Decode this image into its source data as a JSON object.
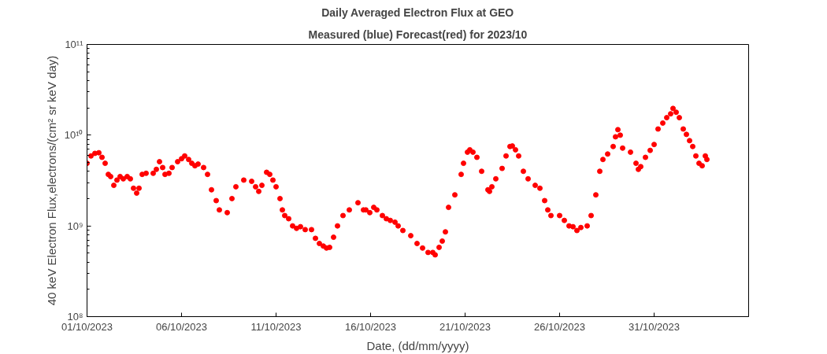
{
  "chart_data": {
    "type": "scatter",
    "title": "Daily Averaged Electron Flux at GEO",
    "subtitle": "Measured (blue) Forecast(red) for 2023/10",
    "xlabel": "Date, (dd/mm/yyyy)",
    "ylabel": "40 keV Electron Flux,electrons/(cm² sr keV day)",
    "log": "y",
    "marker": "circle",
    "grid": false,
    "xlim": [
      "2023-10-01",
      "2023-11-05"
    ],
    "xticks": [
      {
        "value": "2023-10-01",
        "label": "01/10/2023"
      },
      {
        "value": "2023-10-06",
        "label": "06/10/2023"
      },
      {
        "value": "2023-10-11",
        "label": "11/10/2023"
      },
      {
        "value": "2023-10-16",
        "label": "16/10/2023"
      },
      {
        "value": "2023-10-21",
        "label": "21/10/2023"
      },
      {
        "value": "2023-10-26",
        "label": "26/10/2023"
      },
      {
        "value": "2023-10-31",
        "label": "31/10/2023"
      }
    ],
    "ylim": [
      100000000,
      100000000000
    ],
    "yticks": [
      {
        "value": 100000000,
        "label": "10⁸"
      },
      {
        "value": 1000000000,
        "label": "10⁹"
      },
      {
        "value": 10000000000,
        "label": "10¹⁰"
      },
      {
        "value": 100000000000,
        "label": "10¹¹"
      }
    ],
    "x": [
      "2023-10-01T00:00",
      "2023-10-01T05:00",
      "2023-10-01T10:00",
      "2023-10-01T15:00",
      "2023-10-01T19:00",
      "2023-10-01T23:00",
      "2023-10-02T03:00",
      "2023-10-02T06:00",
      "2023-10-02T10:00",
      "2023-10-02T14:00",
      "2023-10-02T18:00",
      "2023-10-02T22:00",
      "2023-10-03T03:00",
      "2023-10-03T07:00",
      "2023-10-03T11:00",
      "2023-10-03T15:00",
      "2023-10-03T18:00",
      "2023-10-03T22:00",
      "2023-10-04T03:00",
      "2023-10-04T12:00",
      "2023-10-04T16:00",
      "2023-10-04T20:00",
      "2023-10-05T00:00",
      "2023-10-05T03:00",
      "2023-10-05T08:00",
      "2023-10-05T12:00",
      "2023-10-05T19:00",
      "2023-10-06T00:00",
      "2023-10-06T04:00",
      "2023-10-06T09:00",
      "2023-10-06T13:00",
      "2023-10-06T17:00",
      "2023-10-06T21:00",
      "2023-10-07T04:00",
      "2023-10-07T09:00",
      "2023-10-07T14:00",
      "2023-10-07T20:00",
      "2023-10-08T00:00",
      "2023-10-08T10:00",
      "2023-10-08T16:00",
      "2023-10-08T21:00",
      "2023-10-09T07:00",
      "2023-10-09T17:00",
      "2023-10-09T22:00",
      "2023-10-10T02:00",
      "2023-10-10T06:00",
      "2023-10-10T12:00",
      "2023-10-10T16:00",
      "2023-10-10T20:00",
      "2023-10-11T00:00",
      "2023-10-11T05:00",
      "2023-10-11T08:00",
      "2023-10-11T11:00",
      "2023-10-11T16:00",
      "2023-10-11T21:00",
      "2023-10-12T02:00",
      "2023-10-12T07:00",
      "2023-10-12T13:00",
      "2023-10-12T21:00",
      "2023-10-13T02:00",
      "2023-10-13T07:00",
      "2023-10-13T12:00",
      "2023-10-13T16:00",
      "2023-10-13T20:00",
      "2023-10-14T01:00",
      "2023-10-14T06:00",
      "2023-10-14T13:00",
      "2023-10-14T21:00",
      "2023-10-15T08:00",
      "2023-10-15T15:00",
      "2023-10-15T18:00",
      "2023-10-15T23:00",
      "2023-10-16T04:00",
      "2023-10-16T08:00",
      "2023-10-16T15:00",
      "2023-10-16T20:00",
      "2023-10-17T01:00",
      "2023-10-17T07:00",
      "2023-10-17T11:00",
      "2023-10-17T17:00",
      "2023-10-18T03:00",
      "2023-10-18T11:00",
      "2023-10-18T18:00",
      "2023-10-19T01:00",
      "2023-10-19T07:00",
      "2023-10-19T10:00",
      "2023-10-19T15:00",
      "2023-10-19T19:00",
      "2023-10-19T23:00",
      "2023-10-20T03:00",
      "2023-10-20T11:00",
      "2023-10-20T19:00",
      "2023-10-20T22:00",
      "2023-10-21T03:00",
      "2023-10-21T06:00",
      "2023-10-21T10:00",
      "2023-10-21T15:00",
      "2023-10-21T21:00",
      "2023-10-22T05:00",
      "2023-10-22T07:00",
      "2023-10-22T10:00",
      "2023-10-22T15:00",
      "2023-10-22T23:00",
      "2023-10-23T04:00",
      "2023-10-23T09:00",
      "2023-10-23T12:00",
      "2023-10-23T16:00",
      "2023-10-23T20:00",
      "2023-10-24T02:00",
      "2023-10-24T08:00",
      "2023-10-24T17:00",
      "2023-10-24T23:00",
      "2023-10-25T05:00",
      "2023-10-25T09:00",
      "2023-10-25T13:00",
      "2023-10-26T00:00",
      "2023-10-26T06:00",
      "2023-10-26T12:00",
      "2023-10-26T17:00",
      "2023-10-26T22:00",
      "2023-10-27T03:00",
      "2023-10-27T11:00",
      "2023-10-27T16:00",
      "2023-10-27T22:00",
      "2023-10-28T03:00",
      "2023-10-28T07:00",
      "2023-10-28T13:00",
      "2023-10-28T20:00",
      "2023-10-28T23:00",
      "2023-10-29T02:00",
      "2023-10-29T05:00",
      "2023-10-29T08:00",
      "2023-10-29T18:00",
      "2023-10-30T01:00",
      "2023-10-30T04:00",
      "2023-10-30T07:00",
      "2023-10-30T13:00",
      "2023-10-30T19:00",
      "2023-10-31T00:00",
      "2023-10-31T05:00",
      "2023-10-31T11:00",
      "2023-10-31T16:00",
      "2023-10-31T21:00",
      "2023-11-01T00:00",
      "2023-11-01T04:00",
      "2023-11-01T08:00",
      "2023-11-01T13:00",
      "2023-11-01T17:00",
      "2023-11-01T21:00",
      "2023-11-02T01:00",
      "2023-11-02T05:00",
      "2023-11-02T09:00",
      "2023-11-02T13:00",
      "2023-11-02T17:00",
      "2023-11-02T19:00"
    ],
    "series": [
      {
        "color": "#ff0000",
        "values": [
          4900000000.0,
          5900000000.0,
          6300000000.0,
          6400000000.0,
          5700000000.0,
          4900000000.0,
          3700000000.0,
          3500000000.0,
          2800000000.0,
          3200000000.0,
          3500000000.0,
          3300000000.0,
          3500000000.0,
          3300000000.0,
          2600000000.0,
          2300000000.0,
          2600000000.0,
          3700000000.0,
          3800000000.0,
          3800000000.0,
          4200000000.0,
          5100000000.0,
          4400000000.0,
          3700000000.0,
          3800000000.0,
          4400000000.0,
          5100000000.0,
          5500000000.0,
          5900000000.0,
          5400000000.0,
          4900000000.0,
          4600000000.0,
          4800000000.0,
          4400000000.0,
          3700000000.0,
          2500000000.0,
          1900000000.0,
          1500000000.0,
          1400000000.0,
          2000000000.0,
          2700000000.0,
          3200000000.0,
          3100000000.0,
          2700000000.0,
          2400000000.0,
          2800000000.0,
          3900000000.0,
          3700000000.0,
          3200000000.0,
          2700000000.0,
          2000000000.0,
          1500000000.0,
          1300000000.0,
          1200000000.0,
          1000000000.0,
          940000000.0,
          980000000.0,
          910000000.0,
          910000000.0,
          730000000.0,
          640000000.0,
          600000000.0,
          570000000.0,
          580000000.0,
          750000000.0,
          1000000000.0,
          1300000000.0,
          1500000000.0,
          1800000000.0,
          1500000000.0,
          1500000000.0,
          1400000000.0,
          1600000000.0,
          1500000000.0,
          1300000000.0,
          1200000000.0,
          1150000000.0,
          1100000000.0,
          1000000000.0,
          890000000.0,
          780000000.0,
          640000000.0,
          570000000.0,
          510000000.0,
          510000000.0,
          480000000.0,
          580000000.0,
          680000000.0,
          860000000.0,
          1600000000.0,
          2200000000.0,
          3700000000.0,
          4900000000.0,
          6500000000.0,
          6900000000.0,
          6500000000.0,
          5700000000.0,
          4000000000.0,
          2500000000.0,
          2400000000.0,
          2700000000.0,
          3300000000.0,
          4300000000.0,
          5900000000.0,
          7500000000.0,
          7600000000.0,
          6900000000.0,
          5900000000.0,
          4000000000.0,
          3300000000.0,
          2800000000.0,
          2600000000.0,
          1900000000.0,
          1500000000.0,
          1300000000.0,
          1300000000.0,
          1150000000.0,
          1000000000.0,
          980000000.0,
          890000000.0,
          960000000.0,
          1000000000.0,
          1300000000.0,
          2200000000.0,
          4000000000.0,
          5400000000.0,
          6200000000.0,
          7500000000.0,
          9600000000.0,
          11500000000.0,
          10000000000.0,
          7200000000.0,
          6500000000.0,
          4900000000.0,
          4200000000.0,
          4500000000.0,
          5700000000.0,
          6800000000.0,
          7900000000.0,
          11700000000.0,
          13600000000.0,
          15600000000.0,
          17200000000.0,
          19700000000.0,
          17900000000.0,
          15600000000.0,
          11700000000.0,
          10200000000.0,
          8700000000.0,
          7500000000.0,
          5900000000.0,
          4900000000.0,
          4600000000.0,
          5900000000.0,
          5400000000.0
        ]
      }
    ]
  }
}
